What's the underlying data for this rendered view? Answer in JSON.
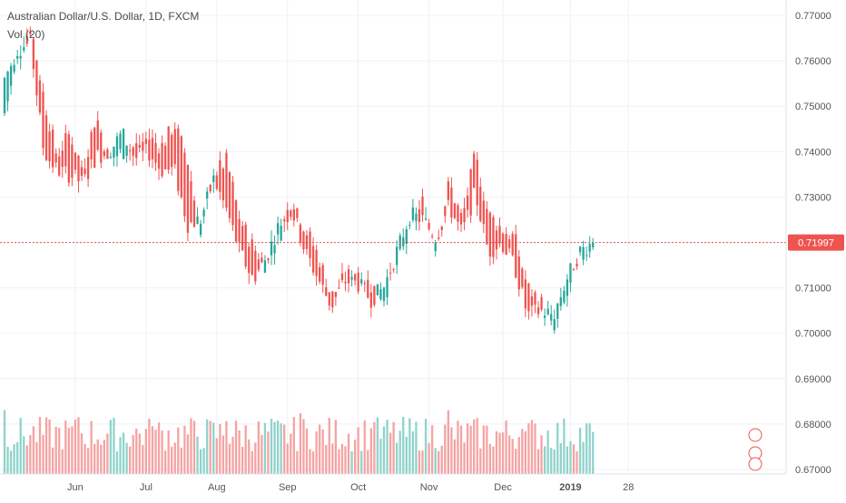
{
  "symbol_title": "Australian Dollar/U.S. Dollar, 1D, FXCM",
  "volume_indicator_label": "Vol (20)",
  "last_price_label": "0.71997",
  "colors": {
    "up": "#26a69a",
    "down": "#ef5350",
    "up_volume": "#8fd3cb",
    "down_volume": "#f5a3a3",
    "grid": "#eef1f4",
    "axis_text": "#555555",
    "price_line": "#ef5350",
    "background": "#ffffff"
  },
  "chart_data": {
    "type": "candlestick",
    "y_axis_ticks": [
      "0.77000",
      "0.76000",
      "0.75000",
      "0.74000",
      "0.73000",
      "0.72000",
      "0.71000",
      "0.70000",
      "0.69000",
      "0.68000",
      "0.67000"
    ],
    "y_range": [
      0.669,
      0.7734
    ],
    "x_axis_ticks": [
      "Jun",
      "Jul",
      "Aug",
      "Sep",
      "Oct",
      "Nov",
      "Dec",
      "2019",
      "28"
    ],
    "last_price": 0.71997,
    "grid": true,
    "anchor_prices": [
      [
        0.7485,
        0.756
      ],
      [
        0.76,
        0.7625
      ],
      [
        0.768,
        0.764
      ],
      [
        0.752,
        0.74
      ],
      [
        0.739,
        0.736
      ],
      [
        0.744,
        0.735
      ],
      [
        0.736,
        0.733
      ],
      [
        0.748,
        0.739
      ],
      [
        0.738,
        0.74
      ],
      [
        0.74,
        0.744
      ],
      [
        0.741,
        0.7385
      ],
      [
        0.743,
        0.74
      ],
      [
        0.741,
        0.736
      ],
      [
        0.746,
        0.736
      ],
      [
        0.738,
        0.724
      ],
      [
        0.7215,
        0.725
      ],
      [
        0.735,
        0.734
      ],
      [
        0.738,
        0.727
      ],
      [
        0.725,
        0.718
      ],
      [
        0.719,
        0.712
      ],
      [
        0.715,
        0.7165
      ],
      [
        0.721,
        0.724
      ],
      [
        0.73,
        0.727
      ],
      [
        0.723,
        0.718
      ],
      [
        0.717,
        0.712
      ],
      [
        0.708,
        0.706
      ],
      [
        0.712,
        0.7115
      ],
      [
        0.714,
        0.711
      ],
      [
        0.7105,
        0.7075
      ],
      [
        0.708,
        0.71
      ],
      [
        0.715,
        0.718
      ],
      [
        0.722,
        0.726
      ],
      [
        0.729,
        0.725
      ],
      [
        0.719,
        0.721
      ],
      [
        0.733,
        0.728
      ],
      [
        0.725,
        0.722
      ],
      [
        0.739,
        0.731
      ],
      [
        0.726,
        0.718
      ],
      [
        0.723,
        0.72
      ],
      [
        0.721,
        0.715
      ],
      [
        0.71,
        0.704
      ],
      [
        0.707,
        0.705
      ],
      [
        0.7,
        0.704
      ],
      [
        0.708,
        0.712
      ],
      [
        0.716,
        0.718
      ],
      [
        0.72,
        0.72
      ]
    ],
    "volume_range": [
      0,
      0.31
    ]
  }
}
